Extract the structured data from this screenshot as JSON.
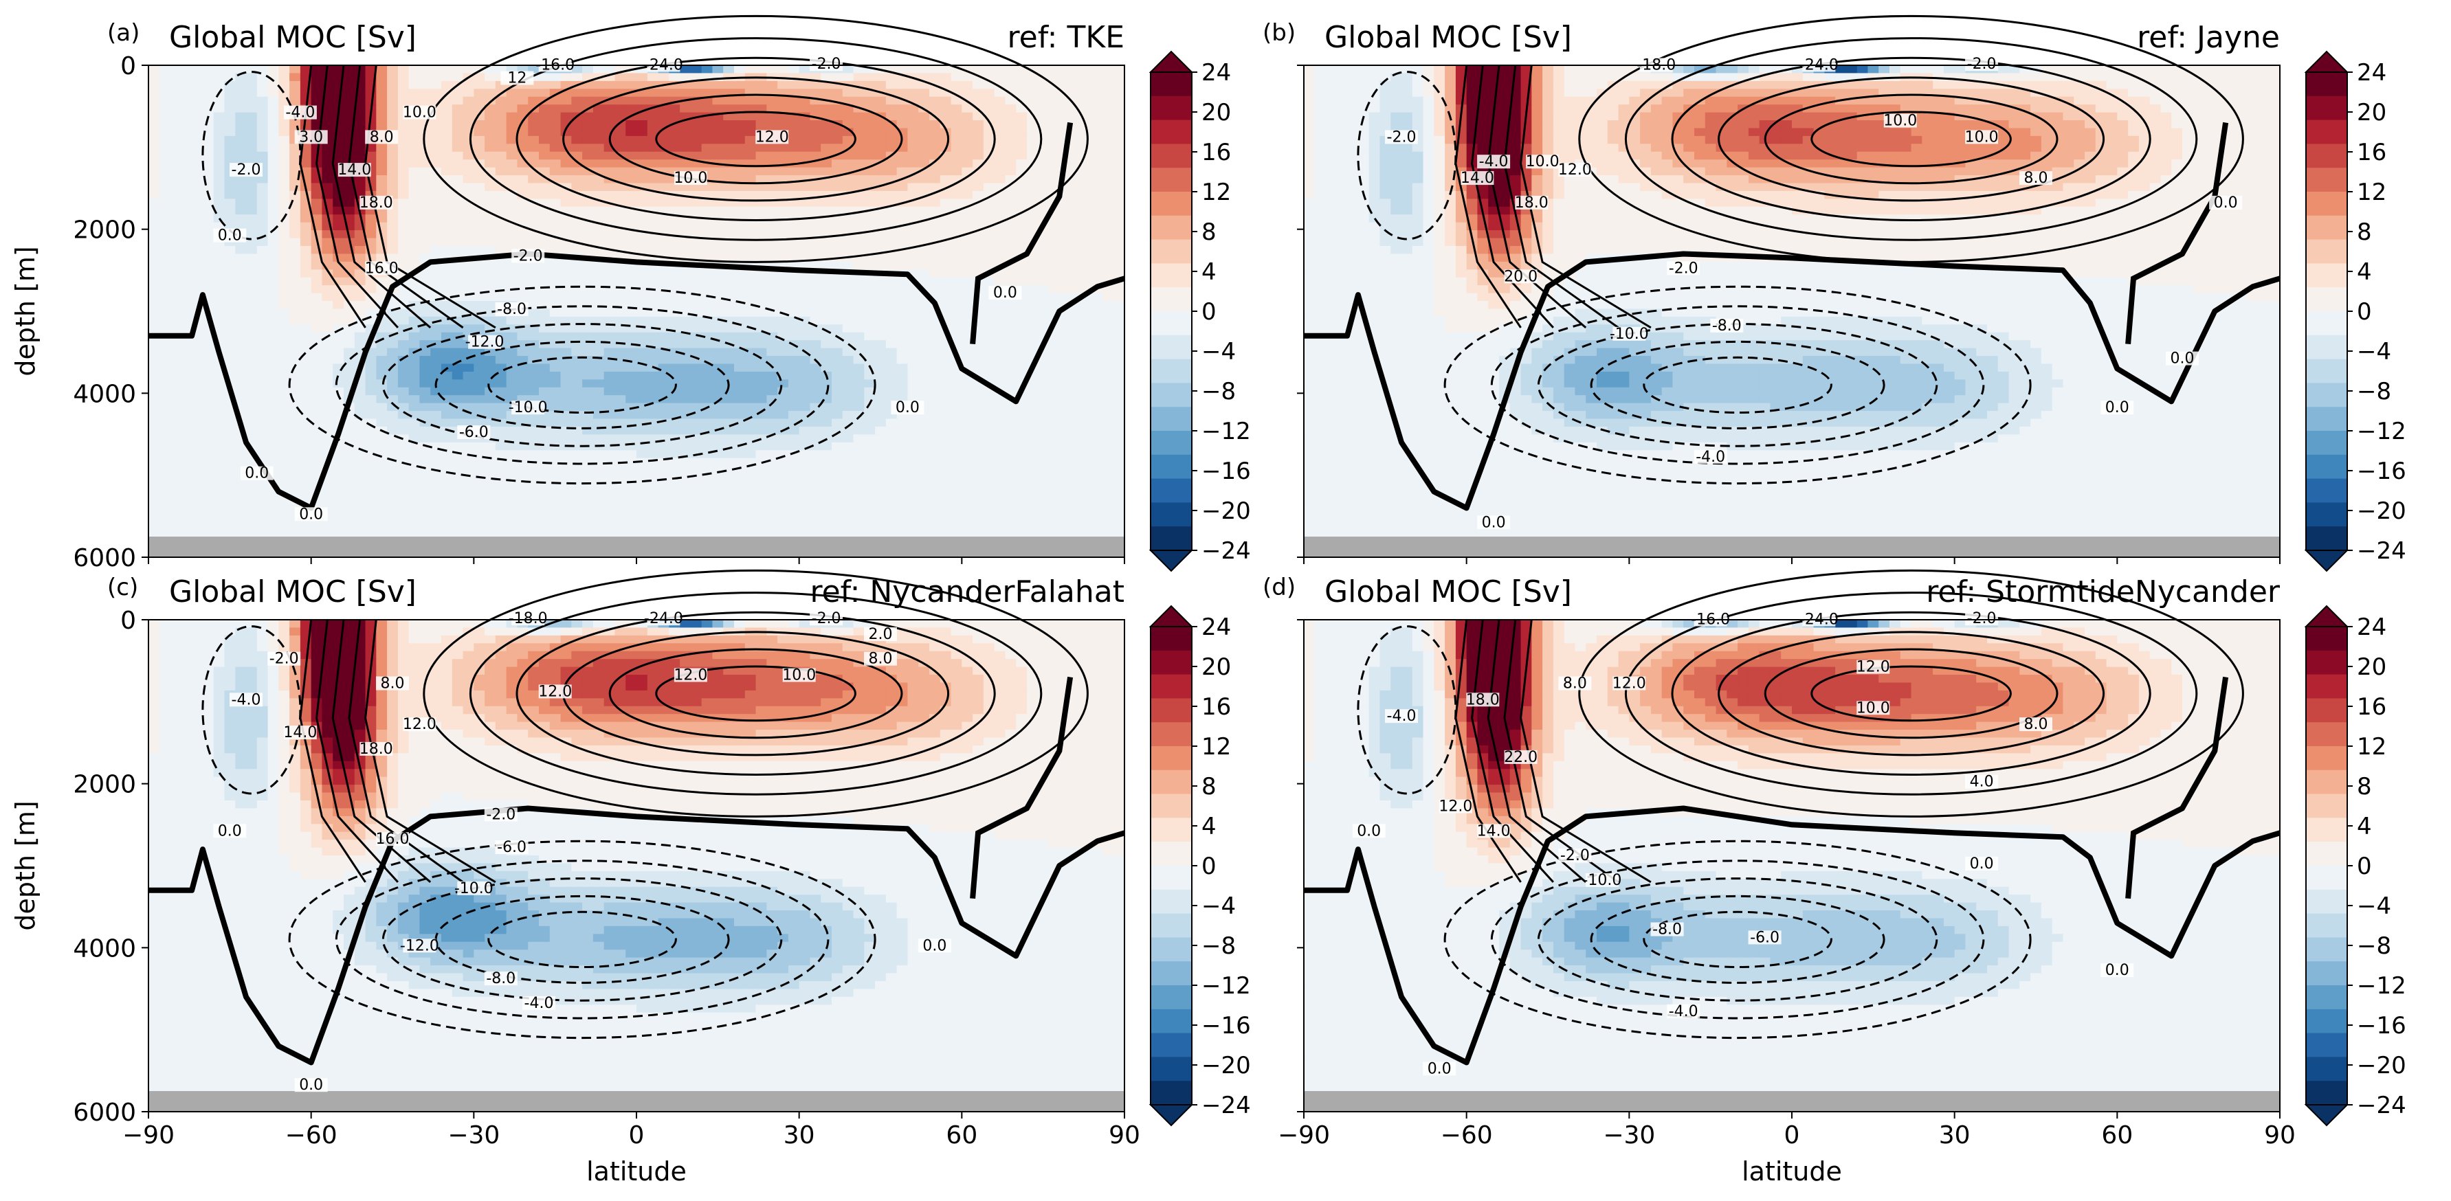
{
  "figure": {
    "colormap": "RdBu_r",
    "colors": {
      "pos": [
        "#f7f1ee",
        "#fbe3d6",
        "#f8ccb4",
        "#f4b092",
        "#ec8f6f",
        "#db6c58",
        "#c84743",
        "#b32331",
        "#8c0a25",
        "#670020"
      ],
      "neg": [
        "#edf3f7",
        "#dae8f2",
        "#c2dbea",
        "#a7cbe2",
        "#85b6d7",
        "#5f9ec9",
        "#3f86bd",
        "#2567a9",
        "#124c8b",
        "#0a3264"
      ],
      "land": "#aaaaaa"
    }
  },
  "colorbar": {
    "ticks": [
      "24",
      "20",
      "16",
      "12",
      "8",
      "4",
      "0",
      "−4",
      "−8",
      "−12",
      "−16",
      "−20",
      "−24"
    ]
  },
  "xaxis": {
    "label": "latitude",
    "ticks": [
      "−90",
      "−60",
      "−30",
      "0",
      "30",
      "60",
      "90"
    ]
  },
  "yaxis": {
    "label": "depth [m]",
    "ticks": [
      "0",
      "2000",
      "4000",
      "6000"
    ]
  },
  "panels": [
    {
      "tag": "(a)",
      "title": "Global MOC [Sv]",
      "ref": "ref: TKE",
      "labels": [
        "-2.0",
        "-4.0",
        "0.0",
        "16.0",
        "14.0",
        "18.0",
        "8.0",
        "3.0",
        "10.0",
        "12.0",
        "10.0",
        "-2.0",
        "-8.0",
        "-12.0",
        "-10.0",
        "-6.0",
        "0.0",
        "0.0",
        "0.0",
        "0.0",
        "-16.0",
        "-24.0",
        "-2.0",
        "12"
      ]
    },
    {
      "tag": "(b)",
      "title": "Global MOC [Sv]",
      "ref": "ref: Jayne",
      "labels": [
        "-2.0",
        "-4.0",
        "10.0",
        "14.0",
        "18.0",
        "20.0",
        "12.0",
        "10.0",
        "10.0",
        "8.0",
        "-2.0",
        "-8.0",
        "-10.0",
        "-4.0",
        "0.0",
        "0.0",
        "0.0",
        "0.0",
        "-18.0",
        "-24.0",
        "-2.0"
      ]
    },
    {
      "tag": "(c)",
      "title": "Global MOC [Sv]",
      "ref": "ref: NycanderFalahat",
      "labels": [
        "-2.0",
        "-4.0",
        "0.0",
        "16.0",
        "14.0",
        "18.0",
        "12.0",
        "8.0",
        "12.0",
        "12.0",
        "10.0",
        "8.0",
        "-2.0",
        "-6.0",
        "-10.0",
        "-12.0",
        "-8.0",
        "-4.0",
        "0.0",
        "0.0",
        "-18.0",
        "-24.0",
        "-2.0",
        "2.0"
      ]
    },
    {
      "tag": "(d)",
      "title": "Global MOC [Sv]",
      "ref": "ref: StormtideNycander",
      "labels": [
        "-4.0",
        "0.0",
        "12.0",
        "14.0",
        "18.0",
        "22.0",
        "8.0",
        "12.0",
        "12.0",
        "10.0",
        "8.0",
        "4.0",
        "0.0",
        "-2.0",
        "-10.0",
        "-8.0",
        "-6.0",
        "-4.0",
        "0.0",
        "0.0",
        "-16.0",
        "-24.0",
        "-2.0"
      ]
    }
  ],
  "chart_data": [
    {
      "type": "heatmap",
      "title": "Global MOC [Sv]",
      "ref": "ref: TKE",
      "xlabel": "",
      "ylabel": "depth [m]",
      "xlim": [
        -90,
        90
      ],
      "ylim": [
        6000,
        0
      ],
      "clim": [
        -24,
        24
      ],
      "features": {
        "pos_cell": {
          "x": 15,
          "y": 800,
          "max": 12
        },
        "aabw_cell": {
          "x": -35,
          "y": 3700,
          "min": -12
        },
        "so_cell": {
          "x": -55,
          "y": 0,
          "max": 24
        },
        "zero_line_depth": 2400
      }
    },
    {
      "type": "heatmap",
      "title": "Global MOC [Sv]",
      "ref": "ref: Jayne",
      "xlabel": "",
      "ylabel": "",
      "xlim": [
        -90,
        90
      ],
      "ylim": [
        6000,
        0
      ],
      "clim": [
        -24,
        24
      ],
      "features": {
        "pos_cell": {
          "x": 15,
          "y": 900,
          "max": 10
        },
        "aabw_cell": {
          "x": -35,
          "y": 3800,
          "min": -10
        },
        "so_cell": {
          "x": -55,
          "y": 0,
          "max": 24
        },
        "zero_line_depth": 2350
      }
    },
    {
      "type": "heatmap",
      "title": "Global MOC [Sv]",
      "ref": "ref: NycanderFalahat",
      "xlabel": "latitude",
      "ylabel": "depth [m]",
      "xlim": [
        -90,
        90
      ],
      "ylim": [
        6000,
        0
      ],
      "clim": [
        -24,
        24
      ],
      "features": {
        "pos_cell": {
          "x": 15,
          "y": 800,
          "max": 12
        },
        "aabw_cell": {
          "x": -35,
          "y": 3600,
          "min": -12
        },
        "so_cell": {
          "x": -55,
          "y": 0,
          "max": 24
        },
        "zero_line_depth": 2400
      }
    },
    {
      "type": "heatmap",
      "title": "Global MOC [Sv]",
      "ref": "ref: StormtideNycander",
      "xlabel": "latitude",
      "ylabel": "",
      "xlim": [
        -90,
        90
      ],
      "ylim": [
        6000,
        0
      ],
      "clim": [
        -24,
        24
      ],
      "features": {
        "pos_cell": {
          "x": 15,
          "y": 900,
          "max": 12
        },
        "aabw_cell": {
          "x": -35,
          "y": 3800,
          "min": -10
        },
        "so_cell": {
          "x": -55,
          "y": 0,
          "max": 24
        },
        "zero_line_depth": 2500
      }
    }
  ]
}
